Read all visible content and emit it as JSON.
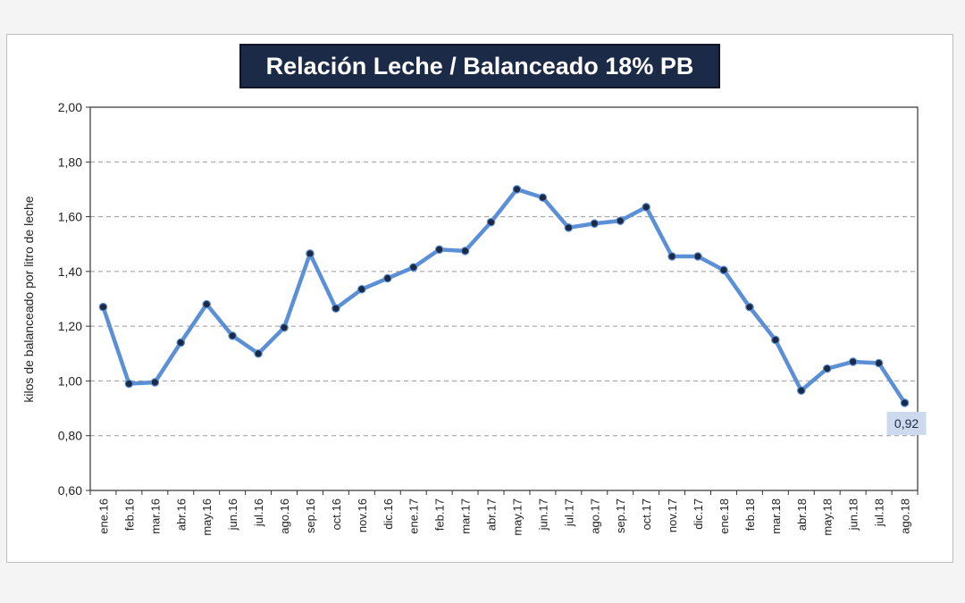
{
  "chart_data": {
    "type": "line",
    "title": "Relación Leche / Balanceado 18% PB",
    "xlabel": "",
    "ylabel": "kilos de balanceado por litro de leche",
    "ylim": [
      0.6,
      2.0
    ],
    "yticks": [
      "0,60",
      "0,80",
      "1,00",
      "1,20",
      "1,40",
      "1,60",
      "1,80",
      "2,00"
    ],
    "grid": "horizontal-dashed",
    "categories": [
      "ene.16",
      "feb.16",
      "mar.16",
      "abr.16",
      "may.16",
      "jun.16",
      "jul.16",
      "ago.16",
      "sep.16",
      "oct.16",
      "nov.16",
      "dic.16",
      "ene.17",
      "feb.17",
      "mar.17",
      "abr.17",
      "may.17",
      "jun.17",
      "jul.17",
      "ago.17",
      "sep.17",
      "oct.17",
      "nov.17",
      "dic.17",
      "ene.18",
      "feb.18",
      "mar.18",
      "abr.18",
      "may.18",
      "jun.18",
      "jul.18",
      "ago.18"
    ],
    "series": [
      {
        "name": "Relación Leche / Balanceado",
        "values": [
          1.27,
          0.99,
          0.995,
          1.14,
          1.28,
          1.165,
          1.1,
          1.195,
          1.465,
          1.265,
          1.335,
          1.375,
          1.415,
          1.48,
          1.475,
          1.58,
          1.7,
          1.67,
          1.56,
          1.575,
          1.585,
          1.635,
          1.455,
          1.455,
          1.405,
          1.27,
          1.15,
          0.965,
          1.045,
          1.07,
          1.065,
          0.92
        ]
      }
    ],
    "annotations": [
      {
        "category": "ago.18",
        "label": "0,92"
      }
    ]
  },
  "colors": {
    "line": "#5b8fd6",
    "marker": "#1b2a46",
    "title_bg": "#1b2a46",
    "callout_bg": "#cdd9ec",
    "grid": "#9a9a9a"
  }
}
